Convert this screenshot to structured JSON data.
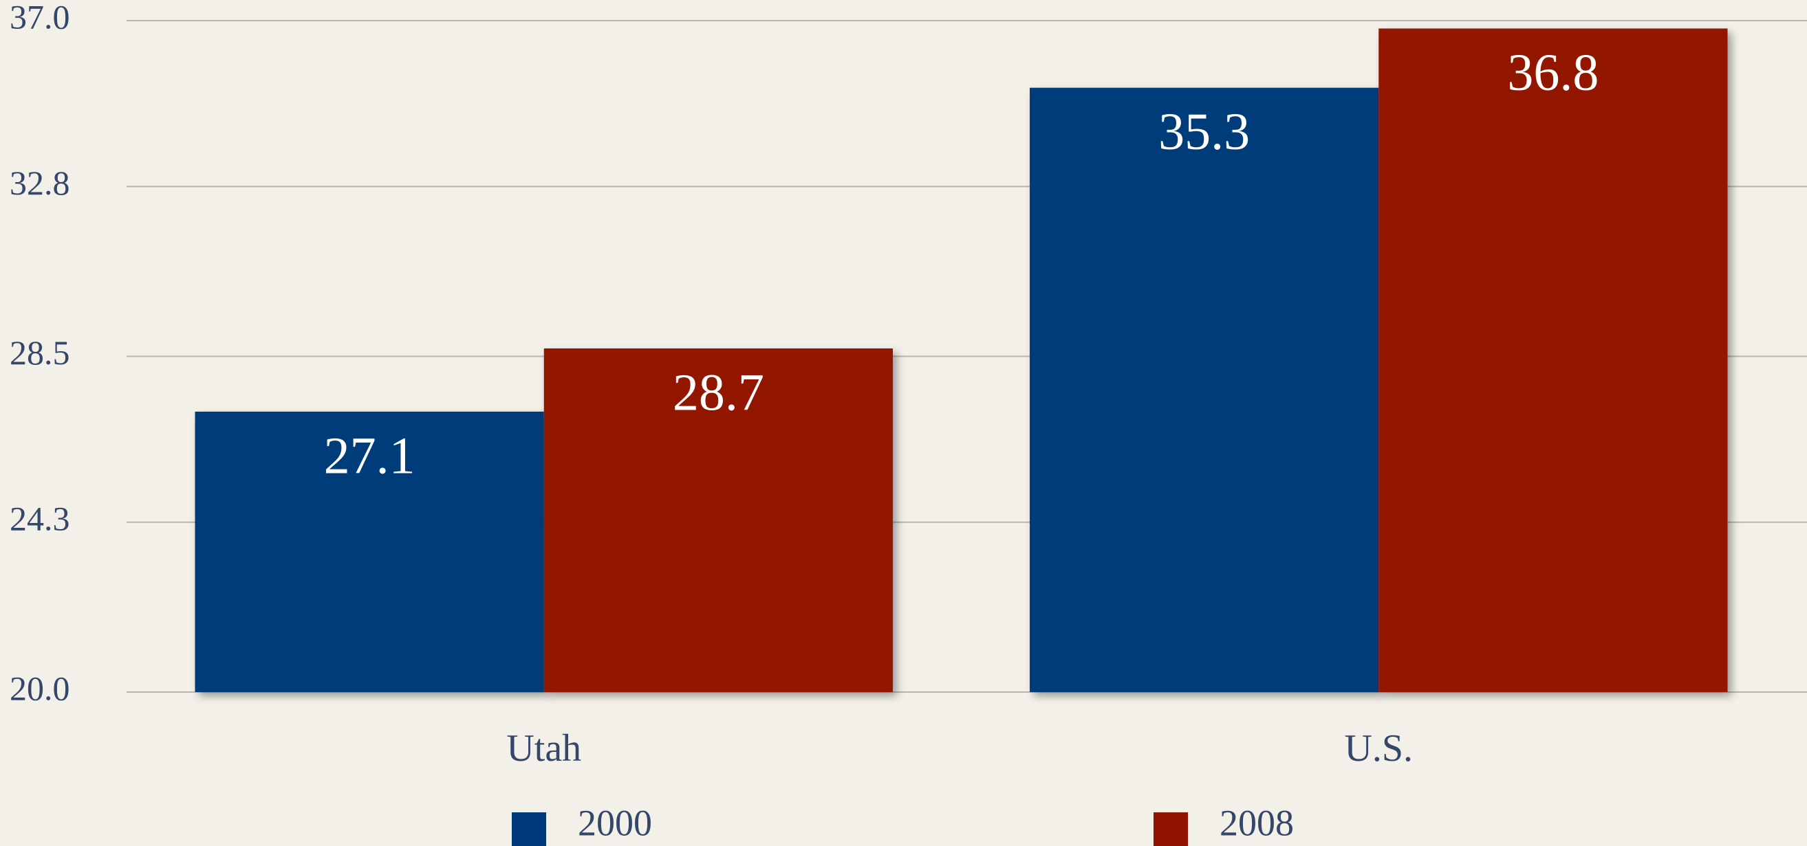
{
  "chart_data": {
    "type": "bar",
    "categories": [
      "Utah",
      "U.S."
    ],
    "series": [
      {
        "name": "2000",
        "color": "#003a7a",
        "values": [
          27.1,
          35.3
        ]
      },
      {
        "name": "2008",
        "color": "#921300",
        "values": [
          28.7,
          36.8
        ]
      }
    ],
    "ylim": [
      20,
      37
    ],
    "yticks": [
      {
        "value": 20,
        "label": "20.0"
      },
      24.3,
      28.5,
      32.8,
      {
        "value": 37,
        "label": "37.0"
      }
    ],
    "grid": true,
    "legend": "bottom"
  }
}
